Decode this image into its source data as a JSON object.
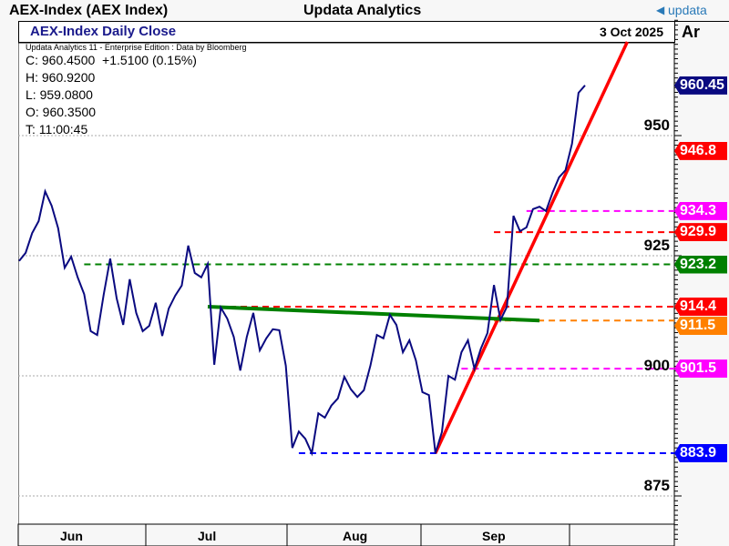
{
  "window": {
    "title": "AEX-Index (AEX Index)",
    "app": "Updata Analytics",
    "logo": "updata",
    "logo_icon": "updata-arrow-icon"
  },
  "header": {
    "chart_title": "AEX-Index Daily Close",
    "date": "3 Oct 2025",
    "axis_label": "Ar"
  },
  "info": {
    "source": "Updata Analytics 11 - Enterprise Edition : Data by Bloomberg",
    "close": "C: 960.4500  +1.5100 (0.15%)",
    "high": "H: 960.9200",
    "low": "L: 959.0800",
    "open": "O: 960.3500",
    "time": "T: 11:00:45"
  },
  "chart_data": {
    "type": "line",
    "title": "AEX-Index Daily Close",
    "ylim": [
      865,
      975
    ],
    "yticks": [
      "950",
      "925",
      "900",
      "875"
    ],
    "ytick_values": [
      950,
      925,
      900,
      875
    ],
    "months": [
      "Jun",
      "Jul",
      "Aug",
      "Sep"
    ],
    "series": [
      {
        "name": "AEX-Index",
        "color": "#0a0a80",
        "values": [
          923.9,
          925.6,
          929.7,
          932.2,
          938.4,
          935.4,
          930.7,
          922.5,
          924.8,
          920.5,
          917.0,
          909.3,
          908.5,
          916.9,
          924.4,
          916.1,
          910.6,
          920.1,
          913.1,
          909.3,
          910.4,
          915.2,
          908.3,
          914.0,
          916.7,
          918.8,
          927.1,
          921.4,
          920.5,
          923.3,
          902.3,
          914.2,
          911.9,
          908.1,
          901.1,
          908.1,
          913.1,
          905.3,
          907.8,
          909.7,
          909.5,
          902.1,
          885.0,
          888.4,
          886.9,
          883.9,
          892.2,
          891.3,
          893.8,
          895.3,
          899.8,
          897.2,
          895.6,
          897.0,
          902.1,
          908.5,
          907.8,
          912.7,
          910.6,
          904.9,
          907.4,
          903.2,
          896.6,
          896.0,
          883.9,
          888.3,
          900.0,
          899.2,
          904.9,
          907.4,
          901.5,
          905.7,
          908.9,
          918.9,
          911.6,
          914.4,
          933.3,
          930.1,
          930.9,
          934.7,
          935.2,
          934.3,
          938.1,
          941.3,
          942.8,
          948.3,
          958.9,
          960.45
        ]
      }
    ],
    "levels": [
      {
        "label": "960.45",
        "value": 960.45,
        "color": "#0a0a80",
        "line": false
      },
      {
        "label": "946.8",
        "value": 946.8,
        "color": "#ff0000",
        "line": false
      },
      {
        "label": "934.3",
        "value": 934.3,
        "color": "#ff00ff",
        "line": true,
        "from_index": 78
      },
      {
        "label": "929.9",
        "value": 929.9,
        "color": "#ff0000",
        "line": true,
        "from_index": 73
      },
      {
        "label": "923.2",
        "value": 923.2,
        "color": "#008000",
        "line": true,
        "from_index": 10
      },
      {
        "label": "914.4",
        "value": 914.4,
        "color": "#ff0000",
        "line": true,
        "from_index": 29
      },
      {
        "label": "911.5",
        "value": 911.5,
        "color": "#ff8000",
        "line": true,
        "from_index": 73
      },
      {
        "label": "901.5",
        "value": 901.5,
        "color": "#ff00ff",
        "line": true,
        "from_index": 68
      },
      {
        "label": "883.9",
        "value": 883.9,
        "color": "#0000ff",
        "line": true,
        "from_index": 43
      }
    ],
    "trendlines": [
      {
        "name": "support-trendline",
        "color": "#ff0000",
        "from": [
          64,
          883.9
        ],
        "to": [
          93.5,
          969.5
        ]
      },
      {
        "name": "resistance-trendline",
        "color": "#008000",
        "from": [
          29,
          914.4
        ],
        "to": [
          80,
          911.5
        ]
      }
    ]
  }
}
